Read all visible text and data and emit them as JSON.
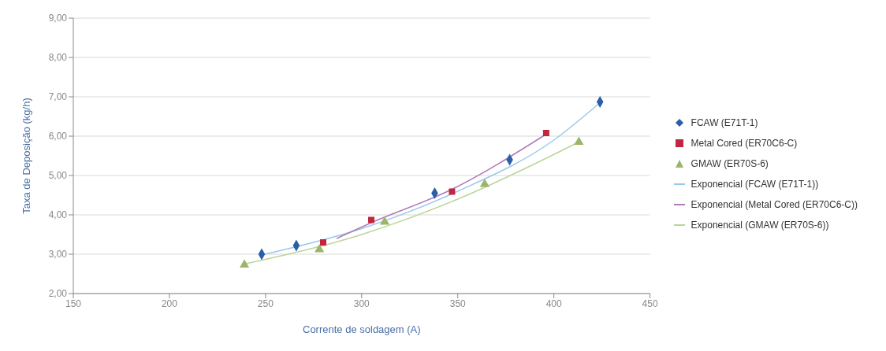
{
  "chart_data": {
    "type": "scatter",
    "xlabel": "Corrente de soldagem (A)",
    "ylabel": "Taxa de Deposição (kg/h)",
    "xlim": [
      150,
      450
    ],
    "xticks": [
      150,
      200,
      250,
      300,
      350,
      400,
      450
    ],
    "ylim": [
      2,
      9
    ],
    "yticks": [
      {
        "value": 2,
        "label": "2,00"
      },
      {
        "value": 3,
        "label": "3,00"
      },
      {
        "value": 4,
        "label": "4,00"
      },
      {
        "value": 5,
        "label": "5,00"
      },
      {
        "value": 6,
        "label": "6,00"
      },
      {
        "value": 7,
        "label": "7,00"
      },
      {
        "value": 8,
        "label": "8,00"
      },
      {
        "value": 9,
        "label": "9,00"
      }
    ],
    "grid": "y",
    "legend": "right",
    "series": [
      {
        "name": "FCAW (E71T-1)",
        "color": "#2a5fa8",
        "marker": "diamond",
        "x": [
          248,
          266,
          338,
          377,
          424
        ],
        "values": [
          3.0,
          3.22,
          4.55,
          5.4,
          6.87
        ]
      },
      {
        "name": "Metal Cored (ER70C6-C)",
        "color": "#c0263f",
        "marker": "square",
        "x": [
          280,
          305,
          347,
          396
        ],
        "values": [
          3.3,
          3.87,
          4.59,
          6.08
        ]
      },
      {
        "name": "GMAW (ER70S-6)",
        "color": "#9bb56a",
        "marker": "triangle",
        "x": [
          239,
          278,
          312,
          364,
          413
        ],
        "values": [
          2.73,
          3.12,
          3.82,
          4.78,
          5.85
        ]
      },
      {
        "name": "Exponencial (FCAW (E71T-1))",
        "type": "line",
        "color": "#9cc8e8",
        "marker": "none",
        "line_style": "solid",
        "x": [
          248,
          300,
          350,
          400,
          424
        ],
        "values": [
          2.98,
          3.65,
          4.6,
          5.9,
          6.85
        ]
      },
      {
        "name": "Exponencial (Metal Cored (ER70C6-C))",
        "type": "line",
        "color": "#b07ab8",
        "marker": "none",
        "line_style": "solid",
        "x": [
          287,
          305,
          347,
          396
        ],
        "values": [
          3.4,
          3.8,
          4.65,
          6.05
        ]
      },
      {
        "name": "Exponencial (GMAW (ER70S-6))",
        "type": "line",
        "color": "#bcd59a",
        "marker": "none",
        "line_style": "solid",
        "x": [
          239,
          300,
          350,
          413
        ],
        "values": [
          2.75,
          3.5,
          4.4,
          5.85
        ]
      }
    ]
  }
}
